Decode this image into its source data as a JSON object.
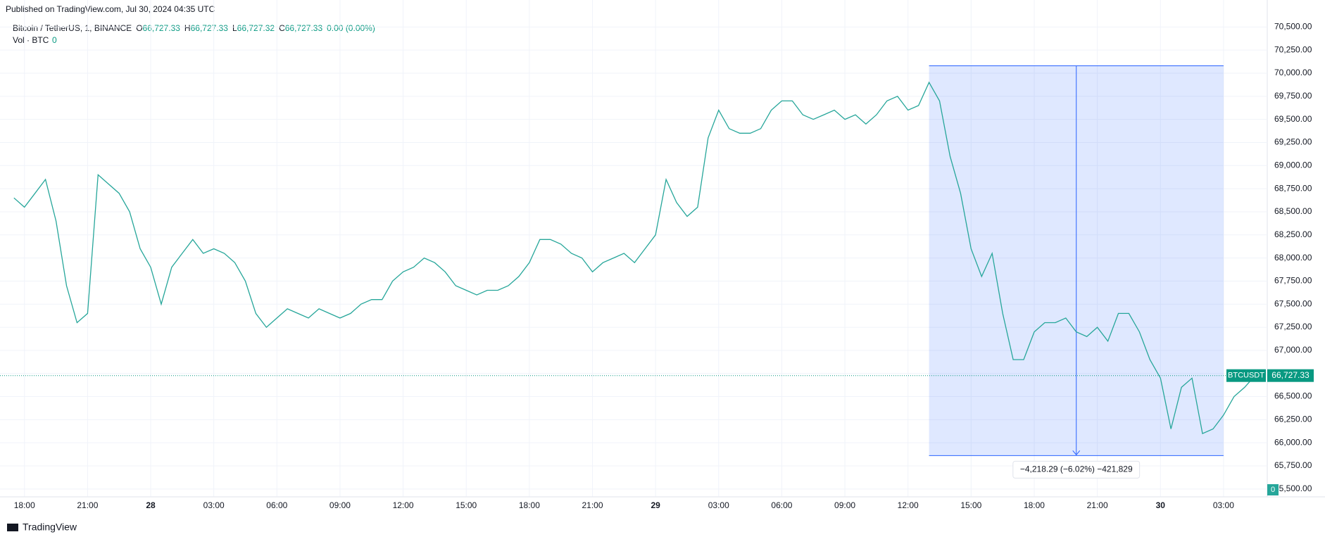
{
  "header": {
    "published": "Published on TradingView.com, Jul 30, 2024 04:35 UTC",
    "symbol": "Bitcoin / TetherUS, 1, BINANCE",
    "ohlc": [
      {
        "key": "O",
        "value": "66,727.33"
      },
      {
        "key": "H",
        "value": "66,727.33"
      },
      {
        "key": "L",
        "value": "66,727.32"
      },
      {
        "key": "C",
        "value": "66,727.33"
      }
    ],
    "change": "0.00 (0.00%)",
    "volume_label": "Vol · BTC",
    "volume_value": "0"
  },
  "footer": {
    "brand": "TradingView"
  },
  "chart_data": {
    "type": "line",
    "color": "#26a69a",
    "grid": true,
    "categories": [
      null,
      "18:00",
      null,
      null,
      null,
      null,
      null,
      "21:00",
      null,
      null,
      null,
      null,
      null,
      "28",
      null,
      null,
      null,
      null,
      null,
      "03:00",
      null,
      null,
      null,
      null,
      null,
      "06:00",
      null,
      null,
      null,
      null,
      null,
      "09:00",
      null,
      null,
      null,
      null,
      null,
      "12:00",
      null,
      null,
      null,
      null,
      null,
      "15:00",
      null,
      null,
      null,
      null,
      null,
      "18:00",
      null,
      null,
      null,
      null,
      null,
      "21:00",
      null,
      null,
      null,
      null,
      null,
      "29",
      null,
      null,
      null,
      null,
      null,
      "03:00",
      null,
      null,
      null,
      null,
      null,
      "06:00",
      null,
      null,
      null,
      null,
      null,
      "09:00",
      null,
      null,
      null,
      null,
      null,
      "12:00",
      null,
      null,
      null,
      null,
      null,
      "15:00",
      null,
      null,
      null,
      null,
      null,
      "18:00",
      null,
      null,
      null,
      null,
      null,
      "21:00",
      null,
      null,
      null,
      null,
      null,
      "30",
      null,
      null,
      null,
      null,
      null,
      "03:00",
      null,
      null,
      null
    ],
    "series": [
      {
        "name": "BTCUSDT",
        "color": "#26a69a",
        "values": [
          68650,
          68550,
          68700,
          68850,
          68400,
          67700,
          67300,
          67400,
          68900,
          68800,
          68700,
          68500,
          68100,
          67900,
          67500,
          67900,
          68050,
          68200,
          68050,
          68100,
          68050,
          67950,
          67750,
          67400,
          67250,
          67350,
          67450,
          67400,
          67350,
          67450,
          67400,
          67350,
          67400,
          67500,
          67550,
          67550,
          67750,
          67850,
          67900,
          68000,
          67950,
          67850,
          67700,
          67650,
          67600,
          67650,
          67650,
          67700,
          67800,
          67950,
          68200,
          68200,
          68150,
          68050,
          68000,
          67850,
          67950,
          68000,
          68050,
          67950,
          68100,
          68250,
          68850,
          68600,
          68450,
          68550,
          69300,
          69600,
          69400,
          69350,
          69350,
          69400,
          69600,
          69700,
          69700,
          69550,
          69500,
          69550,
          69600,
          69500,
          69550,
          69450,
          69550,
          69700,
          69750,
          69600,
          69650,
          69900,
          69700,
          69100,
          68700,
          68100,
          67800,
          68050,
          67400,
          66900,
          66900,
          67200,
          67300,
          67300,
          67350,
          67200,
          67150,
          67250,
          67100,
          67400,
          67400,
          67200,
          66900,
          66700,
          66150,
          66600,
          66700,
          66100,
          66150,
          66300,
          66500,
          66600,
          66727.33
        ]
      }
    ],
    "ylim": [
      65418,
      70591
    ],
    "yticks": [
      {
        "value": 65500,
        "label": "65,500.00"
      },
      {
        "value": 65750,
        "label": "65,750.00"
      },
      {
        "value": 66000,
        "label": "66,000.00"
      },
      {
        "value": 66250,
        "label": "66,250.00"
      },
      {
        "value": 66500,
        "label": "66,500.00"
      },
      {
        "value": 66750,
        "label": "66,750.00"
      },
      {
        "value": 67000,
        "label": "67,000.00"
      },
      {
        "value": 67250,
        "label": "67,250.00"
      },
      {
        "value": 67500,
        "label": "67,500.00"
      },
      {
        "value": 67750,
        "label": "67,750.00"
      },
      {
        "value": 68000,
        "label": "68,000.00"
      },
      {
        "value": 68250,
        "label": "68,250.00"
      },
      {
        "value": 68500,
        "label": "68,500.00"
      },
      {
        "value": 68750,
        "label": "68,750.00"
      },
      {
        "value": 69000,
        "label": "69,000.00"
      },
      {
        "value": 69250,
        "label": "69,250.00"
      },
      {
        "value": 69500,
        "label": "69,500.00"
      },
      {
        "value": 69750,
        "label": "69,750.00"
      },
      {
        "value": 70000,
        "label": "70,000.00"
      },
      {
        "value": 70250,
        "label": "70,250.00"
      },
      {
        "value": 70500,
        "label": "70,500.00"
      }
    ],
    "last_price": {
      "value": 66727.33,
      "label": "66,727.33",
      "symbol": "BTCUSDT"
    },
    "measure": {
      "from": 70080,
      "to": 65861.71,
      "start": 87,
      "end": 115,
      "label": "−4,218.29 (−6.02%) −421,829"
    }
  }
}
